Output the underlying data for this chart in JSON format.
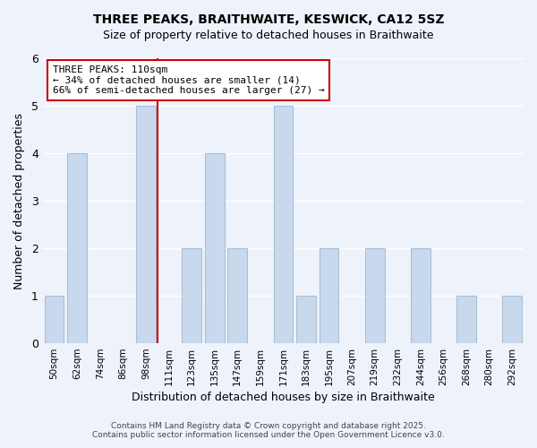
{
  "title": "THREE PEAKS, BRAITHWAITE, KESWICK, CA12 5SZ",
  "subtitle": "Size of property relative to detached houses in Braithwaite",
  "xlabel": "Distribution of detached houses by size in Braithwaite",
  "ylabel": "Number of detached properties",
  "bar_labels": [
    "50sqm",
    "62sqm",
    "74sqm",
    "86sqm",
    "98sqm",
    "111sqm",
    "123sqm",
    "135sqm",
    "147sqm",
    "159sqm",
    "171sqm",
    "183sqm",
    "195sqm",
    "207sqm",
    "219sqm",
    "232sqm",
    "244sqm",
    "256sqm",
    "268sqm",
    "280sqm",
    "292sqm"
  ],
  "bar_values": [
    1,
    4,
    0,
    0,
    5,
    0,
    2,
    4,
    2,
    0,
    5,
    1,
    2,
    0,
    2,
    0,
    2,
    0,
    1,
    0,
    1
  ],
  "bar_color": "#c8d9ed",
  "bar_edgecolor": "#aabfd4",
  "marker_index": 4,
  "marker_color": "#cc0000",
  "ylim": [
    0,
    6
  ],
  "yticks": [
    0,
    1,
    2,
    3,
    4,
    5,
    6
  ],
  "annotation_title": "THREE PEAKS: 110sqm",
  "annotation_line1": "← 34% of detached houses are smaller (14)",
  "annotation_line2": "66% of semi-detached houses are larger (27) →",
  "annotation_box_color": "#ffffff",
  "annotation_box_edgecolor": "#cc0000",
  "background_color": "#eef2fb",
  "grid_color": "#ffffff",
  "footer1": "Contains HM Land Registry data © Crown copyright and database right 2025.",
  "footer2": "Contains public sector information licensed under the Open Government Licence v3.0."
}
